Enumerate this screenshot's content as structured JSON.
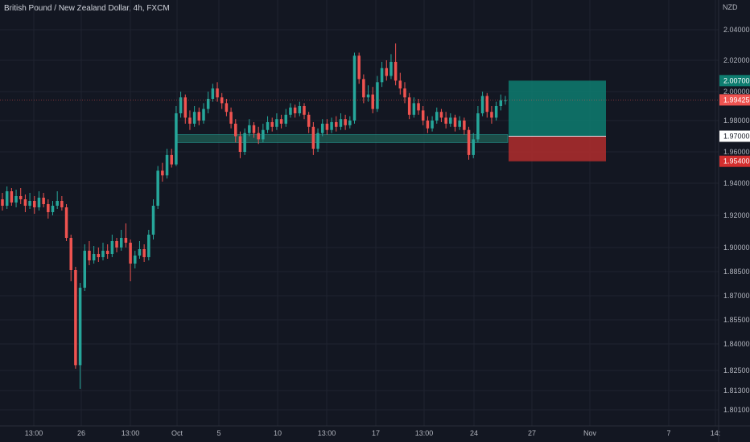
{
  "header": {
    "title": "British Pound / New Zealand Dollar, 4h, FXCM",
    "currency": "NZD"
  },
  "colors": {
    "background": "#131722",
    "up": "#26a69a",
    "down": "#ef5350",
    "grid": "#1f2330",
    "axis_text": "#b2b5be",
    "profit_zone": "#0e7d70",
    "loss_zone": "#b22d2d",
    "support_zone": "#1f5b52"
  },
  "chart_data": {
    "type": "candlestick",
    "title": "British Pound / New Zealand Dollar, 4h, FXCM",
    "y_ticks": [
      "2.04000",
      "2.02000",
      "2.00000",
      "1.98000",
      "1.96000",
      "1.94000",
      "1.92000",
      "1.90000",
      "1.88500",
      "1.87000",
      "1.85500",
      "1.84000",
      "1.82500",
      "1.81300",
      "1.80100"
    ],
    "x_ticks": [
      "13:00",
      "26",
      "13:00",
      "Oct",
      "5",
      "10",
      "13:00",
      "17",
      "13:00",
      "24",
      "27",
      "Nov",
      "7",
      "14:"
    ],
    "price_tags": [
      {
        "label": "2.00700",
        "role": "take-profit"
      },
      {
        "label": "1.99425",
        "role": "last-price"
      },
      {
        "label": "1.97000",
        "role": "entry"
      },
      {
        "label": "1.95400",
        "role": "stop-loss"
      }
    ],
    "position": {
      "type": "long",
      "entry": 1.97,
      "take_profit": 2.007,
      "stop_loss": 1.954
    },
    "support_zone": {
      "low": 1.966,
      "high": 1.971
    },
    "candles": [
      [
        1.93,
        1.926,
        1.934,
        1.923
      ],
      [
        1.926,
        1.935,
        1.938,
        1.924
      ],
      [
        1.935,
        1.928,
        1.937,
        1.926
      ],
      [
        1.928,
        1.932,
        1.936,
        1.925
      ],
      [
        1.932,
        1.93,
        1.937,
        1.927
      ],
      [
        1.93,
        1.926,
        1.933,
        1.922
      ],
      [
        1.926,
        1.929,
        1.934,
        1.924
      ],
      [
        1.929,
        1.925,
        1.932,
        1.921
      ],
      [
        1.925,
        1.931,
        1.935,
        1.923
      ],
      [
        1.931,
        1.927,
        1.934,
        1.925
      ],
      [
        1.927,
        1.922,
        1.93,
        1.918
      ],
      [
        1.922,
        1.926,
        1.929,
        1.92
      ],
      [
        1.926,
        1.929,
        1.935,
        1.924
      ],
      [
        1.929,
        1.925,
        1.932,
        1.923
      ],
      [
        1.925,
        1.906,
        1.927,
        1.904
      ],
      [
        1.906,
        1.886,
        1.908,
        1.879
      ],
      [
        1.886,
        1.828,
        1.888,
        1.826
      ],
      [
        1.828,
        1.875,
        1.878,
        1.814
      ],
      [
        1.875,
        1.898,
        1.902,
        1.873
      ],
      [
        1.898,
        1.892,
        1.904,
        1.889
      ],
      [
        1.892,
        1.896,
        1.901,
        1.89
      ],
      [
        1.896,
        1.894,
        1.9,
        1.891
      ],
      [
        1.894,
        1.898,
        1.903,
        1.892
      ],
      [
        1.898,
        1.896,
        1.902,
        1.893
      ],
      [
        1.896,
        1.904,
        1.908,
        1.894
      ],
      [
        1.904,
        1.9,
        1.906,
        1.897
      ],
      [
        1.9,
        1.906,
        1.911,
        1.898
      ],
      [
        1.906,
        1.903,
        1.915,
        1.9
      ],
      [
        1.903,
        1.89,
        1.905,
        1.879
      ],
      [
        1.89,
        1.895,
        1.898,
        1.887
      ],
      [
        1.895,
        1.899,
        1.904,
        1.893
      ],
      [
        1.899,
        1.894,
        1.902,
        1.891
      ],
      [
        1.894,
        1.908,
        1.911,
        1.892
      ],
      [
        1.908,
        1.926,
        1.93,
        1.905
      ],
      [
        1.926,
        1.948,
        1.951,
        1.924
      ],
      [
        1.948,
        1.945,
        1.953,
        1.941
      ],
      [
        1.945,
        1.958,
        1.962,
        1.943
      ],
      [
        1.958,
        1.952,
        1.962,
        1.95
      ],
      [
        1.952,
        1.985,
        1.99,
        1.951
      ],
      [
        1.985,
        1.996,
        2.0,
        1.982
      ],
      [
        1.996,
        1.982,
        1.998,
        1.978
      ],
      [
        1.982,
        1.978,
        1.987,
        1.974
      ],
      [
        1.978,
        1.986,
        1.99,
        1.976
      ],
      [
        1.986,
        1.98,
        1.989,
        1.977
      ],
      [
        1.98,
        1.988,
        1.992,
        1.978
      ],
      [
        1.988,
        1.995,
        2.0,
        1.985
      ],
      [
        1.995,
        2.002,
        2.005,
        1.993
      ],
      [
        2.002,
        1.996,
        2.006,
        1.993
      ],
      [
        1.996,
        1.992,
        1.999,
        1.988
      ],
      [
        1.992,
        1.986,
        1.995,
        1.983
      ],
      [
        1.986,
        1.978,
        1.989,
        1.975
      ],
      [
        1.978,
        1.97,
        1.981,
        1.966
      ],
      [
        1.97,
        1.96,
        1.973,
        1.956
      ],
      [
        1.96,
        1.972,
        1.975,
        1.958
      ],
      [
        1.972,
        1.977,
        1.981,
        1.97
      ],
      [
        1.977,
        1.972,
        1.979,
        1.969
      ],
      [
        1.972,
        1.968,
        1.976,
        1.965
      ],
      [
        1.968,
        1.974,
        1.978,
        1.966
      ],
      [
        1.974,
        1.979,
        1.983,
        1.972
      ],
      [
        1.979,
        1.976,
        1.982,
        1.973
      ],
      [
        1.976,
        1.981,
        1.985,
        1.974
      ],
      [
        1.981,
        1.978,
        1.984,
        1.975
      ],
      [
        1.978,
        1.984,
        1.988,
        1.976
      ],
      [
        1.984,
        1.989,
        1.992,
        1.982
      ],
      [
        1.989,
        1.985,
        1.991,
        1.982
      ],
      [
        1.985,
        1.99,
        1.993,
        1.983
      ],
      [
        1.99,
        1.984,
        1.992,
        1.981
      ],
      [
        1.984,
        1.976,
        1.986,
        1.972
      ],
      [
        1.976,
        1.962,
        1.979,
        1.958
      ],
      [
        1.962,
        1.972,
        1.975,
        1.96
      ],
      [
        1.972,
        1.978,
        1.981,
        1.97
      ],
      [
        1.978,
        1.974,
        1.981,
        1.971
      ],
      [
        1.974,
        1.979,
        1.982,
        1.972
      ],
      [
        1.979,
        1.976,
        1.983,
        1.973
      ],
      [
        1.976,
        1.981,
        1.985,
        1.974
      ],
      [
        1.981,
        1.977,
        1.984,
        1.974
      ],
      [
        1.977,
        1.98,
        1.983,
        1.975
      ],
      [
        1.98,
        2.023,
        2.025,
        1.978
      ],
      [
        2.023,
        2.008,
        2.025,
        2.005
      ],
      [
        2.008,
        1.996,
        2.011,
        1.992
      ],
      [
        1.996,
        1.998,
        2.004,
        1.993
      ],
      [
        1.998,
        1.988,
        2.003,
        1.985
      ],
      [
        1.988,
        2.006,
        2.01,
        1.986
      ],
      [
        2.006,
        2.015,
        2.019,
        2.003
      ],
      [
        2.015,
        2.01,
        2.02,
        2.007
      ],
      [
        2.01,
        2.019,
        2.024,
        2.008
      ],
      [
        2.019,
        2.007,
        2.031,
        2.004
      ],
      [
        2.007,
        2.002,
        2.012,
        1.998
      ],
      [
        2.002,
        1.996,
        2.006,
        1.992
      ],
      [
        1.996,
        1.984,
        1.999,
        1.981
      ],
      [
        1.984,
        1.992,
        1.996,
        1.982
      ],
      [
        1.992,
        1.987,
        1.995,
        1.984
      ],
      [
        1.987,
        1.98,
        1.99,
        1.977
      ],
      [
        1.98,
        1.975,
        1.983,
        1.972
      ],
      [
        1.975,
        1.98,
        1.983,
        1.973
      ],
      [
        1.98,
        1.986,
        1.989,
        1.978
      ],
      [
        1.986,
        1.982,
        1.988,
        1.979
      ],
      [
        1.982,
        1.978,
        1.986,
        1.975
      ],
      [
        1.978,
        1.982,
        1.985,
        1.976
      ],
      [
        1.982,
        1.976,
        1.984,
        1.973
      ],
      [
        1.976,
        1.98,
        1.983,
        1.974
      ],
      [
        1.98,
        1.974,
        1.982,
        1.971
      ],
      [
        1.974,
        1.958,
        1.976,
        1.955
      ],
      [
        1.958,
        1.968,
        1.972,
        1.956
      ],
      [
        1.968,
        1.985,
        1.99,
        1.966
      ],
      [
        1.985,
        1.997,
        2.0,
        1.983
      ],
      [
        1.997,
        1.986,
        1.999,
        1.982
      ],
      [
        1.986,
        1.982,
        1.99,
        1.978
      ],
      [
        1.982,
        1.99,
        1.993,
        1.98
      ],
      [
        1.99,
        1.994,
        1.998,
        1.987
      ],
      [
        1.994,
        1.994,
        1.997,
        1.991
      ]
    ]
  }
}
